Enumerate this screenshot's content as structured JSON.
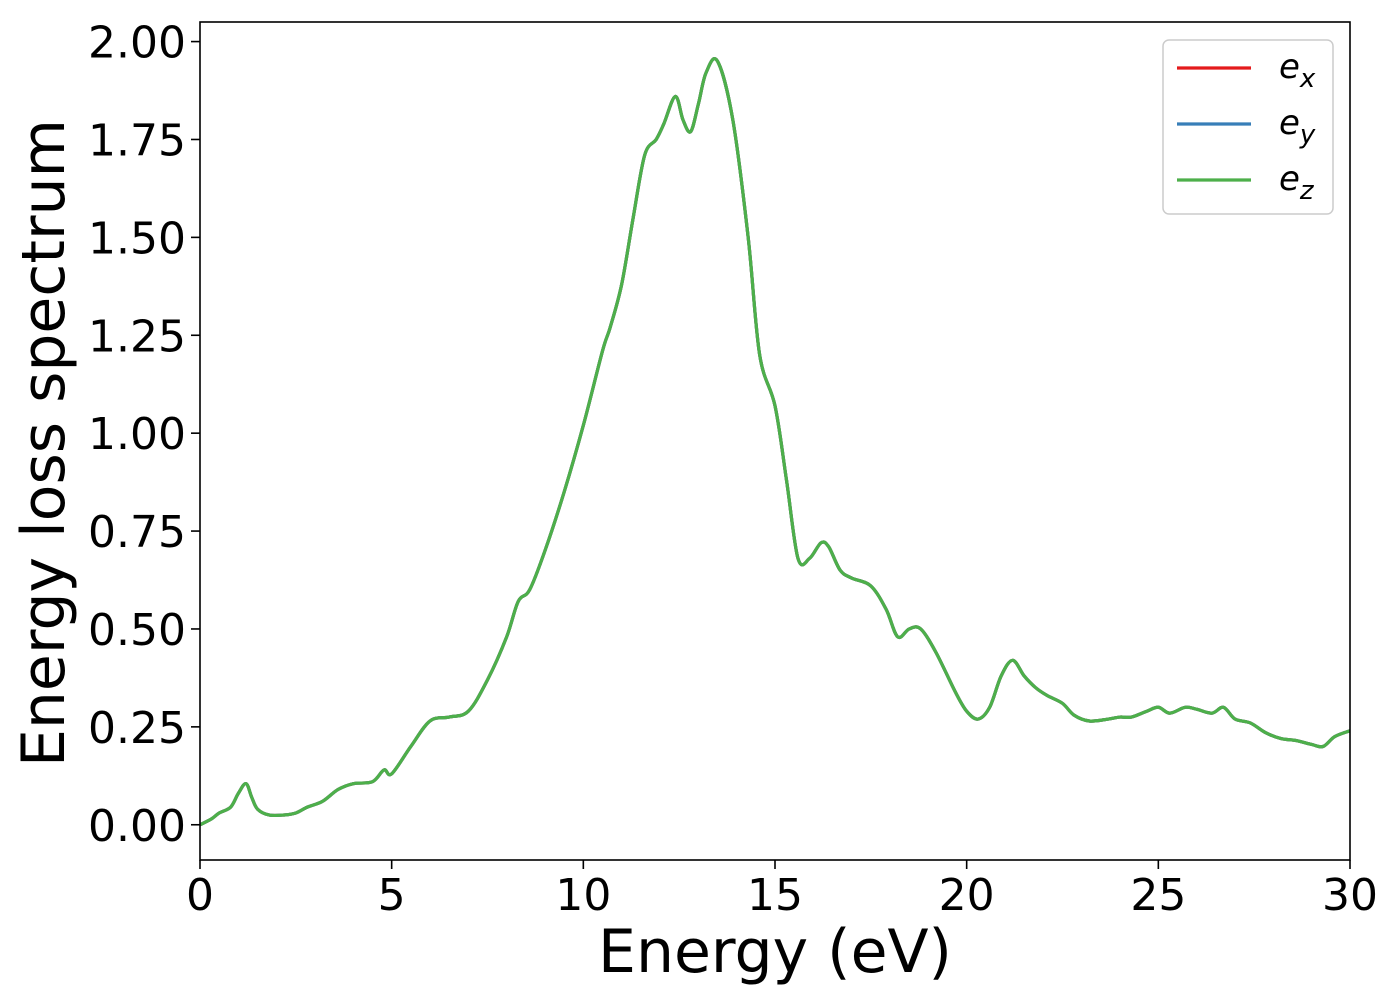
{
  "chart_data": {
    "type": "line",
    "title": "",
    "xlabel": "Energy (eV)",
    "ylabel": "Energy loss spectrum",
    "xlim": [
      0,
      30
    ],
    "ylim": [
      -0.09,
      2.05
    ],
    "xticks": [
      0,
      5,
      10,
      15,
      20,
      25,
      30
    ],
    "xtick_labels": [
      "0",
      "5",
      "10",
      "15",
      "20",
      "25",
      "30"
    ],
    "yticks": [
      0,
      0.25,
      0.5,
      0.75,
      1.0,
      1.25,
      1.5,
      1.75,
      2.0
    ],
    "ytick_labels": [
      "0.00",
      "0.25",
      "0.50",
      "0.75",
      "1.00",
      "1.25",
      "1.50",
      "1.75",
      "2.00"
    ],
    "grid": false,
    "legend_position": "top-right",
    "legend": [
      {
        "base": "e",
        "sub": "x",
        "color": "#e41a1c"
      },
      {
        "base": "e",
        "sub": "y",
        "color": "#377eb8"
      },
      {
        "base": "e",
        "sub": "z",
        "color": "#4daf4a"
      }
    ],
    "x": [
      0,
      0.3,
      0.5,
      0.8,
      1.0,
      1.2,
      1.35,
      1.5,
      1.8,
      2.2,
      2.5,
      2.8,
      3.2,
      3.6,
      4.0,
      4.5,
      4.8,
      5.0,
      5.5,
      6.0,
      6.5,
      7.0,
      7.5,
      8.0,
      8.3,
      8.6,
      9.0,
      9.5,
      10.0,
      10.5,
      10.7,
      11.0,
      11.3,
      11.6,
      11.9,
      12.1,
      12.4,
      12.6,
      12.8,
      13.0,
      13.2,
      13.5,
      13.9,
      14.3,
      14.6,
      15.0,
      15.3,
      15.6,
      15.9,
      16.2,
      16.4,
      16.7,
      17.0,
      17.5,
      17.9,
      18.2,
      18.5,
      18.8,
      19.2,
      19.7,
      20.0,
      20.3,
      20.6,
      20.9,
      21.2,
      21.5,
      21.8,
      22.1,
      22.5,
      22.8,
      23.2,
      23.7,
      24.0,
      24.3,
      24.7,
      25.0,
      25.3,
      25.7,
      26.0,
      26.4,
      26.7,
      27.0,
      27.4,
      27.8,
      28.2,
      28.6,
      29.0,
      29.3,
      29.6,
      30.0
    ],
    "series": [
      {
        "name": "e_x",
        "color": "#e41a1c",
        "values": [
          0.0,
          0.015,
          0.03,
          0.045,
          0.08,
          0.105,
          0.07,
          0.04,
          0.025,
          0.025,
          0.03,
          0.045,
          0.06,
          0.09,
          0.105,
          0.11,
          0.14,
          0.13,
          0.2,
          0.265,
          0.275,
          0.29,
          0.37,
          0.48,
          0.57,
          0.6,
          0.7,
          0.85,
          1.02,
          1.21,
          1.27,
          1.38,
          1.55,
          1.71,
          1.75,
          1.79,
          1.86,
          1.8,
          1.77,
          1.84,
          1.92,
          1.95,
          1.8,
          1.5,
          1.2,
          1.07,
          0.88,
          0.68,
          0.68,
          0.72,
          0.71,
          0.65,
          0.63,
          0.61,
          0.55,
          0.48,
          0.5,
          0.5,
          0.44,
          0.34,
          0.29,
          0.27,
          0.3,
          0.38,
          0.42,
          0.38,
          0.35,
          0.33,
          0.31,
          0.28,
          0.265,
          0.27,
          0.275,
          0.275,
          0.29,
          0.3,
          0.285,
          0.3,
          0.295,
          0.285,
          0.3,
          0.27,
          0.26,
          0.235,
          0.22,
          0.215,
          0.205,
          0.2,
          0.225,
          0.24
        ]
      },
      {
        "name": "e_y",
        "color": "#377eb8",
        "values": [
          0.0,
          0.015,
          0.03,
          0.045,
          0.08,
          0.105,
          0.07,
          0.04,
          0.025,
          0.025,
          0.03,
          0.045,
          0.06,
          0.09,
          0.105,
          0.11,
          0.14,
          0.13,
          0.2,
          0.265,
          0.275,
          0.29,
          0.37,
          0.48,
          0.57,
          0.6,
          0.7,
          0.85,
          1.02,
          1.21,
          1.27,
          1.38,
          1.55,
          1.71,
          1.75,
          1.79,
          1.86,
          1.8,
          1.77,
          1.84,
          1.92,
          1.95,
          1.8,
          1.5,
          1.2,
          1.07,
          0.88,
          0.68,
          0.68,
          0.72,
          0.71,
          0.65,
          0.63,
          0.61,
          0.55,
          0.48,
          0.5,
          0.5,
          0.44,
          0.34,
          0.29,
          0.27,
          0.3,
          0.38,
          0.42,
          0.38,
          0.35,
          0.33,
          0.31,
          0.28,
          0.265,
          0.27,
          0.275,
          0.275,
          0.29,
          0.3,
          0.285,
          0.3,
          0.295,
          0.285,
          0.3,
          0.27,
          0.26,
          0.235,
          0.22,
          0.215,
          0.205,
          0.2,
          0.225,
          0.24
        ]
      },
      {
        "name": "e_z",
        "color": "#4daf4a",
        "values": [
          0.0,
          0.015,
          0.03,
          0.045,
          0.08,
          0.105,
          0.07,
          0.04,
          0.025,
          0.025,
          0.03,
          0.045,
          0.06,
          0.09,
          0.105,
          0.11,
          0.14,
          0.13,
          0.2,
          0.265,
          0.275,
          0.29,
          0.37,
          0.48,
          0.57,
          0.6,
          0.7,
          0.85,
          1.02,
          1.21,
          1.27,
          1.38,
          1.55,
          1.71,
          1.75,
          1.79,
          1.86,
          1.8,
          1.77,
          1.84,
          1.92,
          1.95,
          1.8,
          1.5,
          1.2,
          1.07,
          0.88,
          0.68,
          0.68,
          0.72,
          0.71,
          0.65,
          0.63,
          0.61,
          0.55,
          0.48,
          0.5,
          0.5,
          0.44,
          0.34,
          0.29,
          0.27,
          0.3,
          0.38,
          0.42,
          0.38,
          0.35,
          0.33,
          0.31,
          0.28,
          0.265,
          0.27,
          0.275,
          0.275,
          0.29,
          0.3,
          0.285,
          0.3,
          0.295,
          0.285,
          0.3,
          0.27,
          0.26,
          0.235,
          0.22,
          0.215,
          0.205,
          0.2,
          0.225,
          0.24
        ]
      }
    ]
  }
}
